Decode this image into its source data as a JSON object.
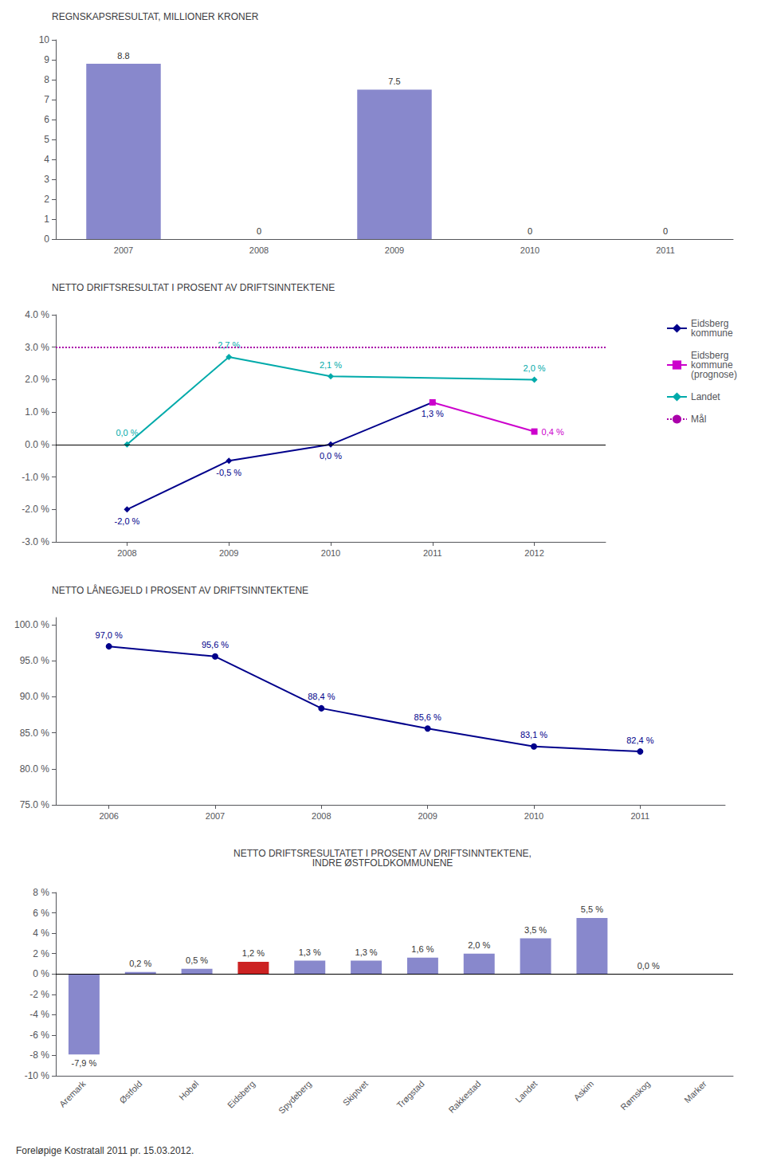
{
  "chart_data": [
    {
      "type": "bar",
      "title": "REGNSKAPSRESULTAT, MILLIONER KRONER",
      "categories": [
        "2007",
        "2008",
        "2009",
        "2010",
        "2011"
      ],
      "values": [
        8.8,
        0,
        7.5,
        0,
        0
      ],
      "color": "#8888cc",
      "ylim": [
        0,
        10
      ],
      "yticks": [
        0,
        1,
        2,
        3,
        4,
        5,
        6,
        7,
        8,
        9,
        10
      ],
      "data_labels": true,
      "grid": false
    },
    {
      "type": "line",
      "title": "NETTO DRIFTSRESULTAT I PROSENT AV DRIFTSINNTEKTENE",
      "x": [
        2008,
        2009,
        2010,
        2011,
        2012
      ],
      "xlim": [
        2007.3,
        2012.7
      ],
      "xticks": [
        2008,
        2009,
        2010,
        2011,
        2012
      ],
      "ylim": [
        -3.0,
        4.0
      ],
      "yticks": [
        {
          "value": -3.0,
          "label": "-3.0 %"
        },
        {
          "value": -2.0,
          "label": "-2.0 %"
        },
        {
          "value": -1.0,
          "label": "-1.0 %"
        },
        {
          "value": 0.0,
          "label": "0.0 %"
        },
        {
          "value": 1.0,
          "label": "1.0 %"
        },
        {
          "value": 2.0,
          "label": "2.0 %"
        },
        {
          "value": 3.0,
          "label": "3.0 %"
        },
        {
          "value": 4.0,
          "label": "4.0 %"
        }
      ],
      "grid": false,
      "legend": "right",
      "series": [
        {
          "name": "Eidsberg\nkommune",
          "color": "#00008B",
          "marker": "diamond",
          "values": [
            -2.0,
            -0.5,
            0.0,
            1.3,
            null
          ],
          "value_labels": [
            "-2,0 %",
            "-0,5 %",
            "0,0 %",
            "1,3 %",
            null
          ]
        },
        {
          "name": "Eidsberg\nkommune\n(prognose)",
          "color": "#cc00cc",
          "marker": "square",
          "values": [
            null,
            null,
            null,
            1.3,
            0.4
          ],
          "value_labels": [
            null,
            null,
            null,
            null,
            "0,4 %"
          ]
        },
        {
          "name": "Landet",
          "color": "#00aaaa",
          "marker": "diamond",
          "values": [
            0.0,
            2.7,
            2.1,
            null,
            2.0
          ],
          "value_labels": [
            "0,0 %",
            "2,7 %",
            "2,1 %",
            null,
            "2,0 %"
          ]
        },
        {
          "name": "Mål",
          "type": "hline",
          "color": "#aa00aa",
          "line_style": "dotted",
          "value": 3.0
        }
      ]
    },
    {
      "type": "line",
      "title": "NETTO LÅNEGJELD I PROSENT AV DRIFTSINNTEKTENE",
      "x": [
        2006,
        2007,
        2008,
        2009,
        2010,
        2011
      ],
      "xlim": [
        2005.5,
        2011.8
      ],
      "xticks": [
        2006,
        2007,
        2008,
        2009,
        2010,
        2011
      ],
      "values": [
        97.0,
        95.6,
        88.4,
        85.6,
        83.1,
        82.4
      ],
      "value_labels": [
        "97,0 %",
        "95,6 %",
        "88,4 %",
        "85,6 %",
        "83,1 %",
        "82,4 %"
      ],
      "color": "#00008B",
      "marker": "circle",
      "ylim": [
        75,
        101
      ],
      "yticks": [
        {
          "value": 75.0,
          "label": "75.0 %"
        },
        {
          "value": 80.0,
          "label": "80.0 %"
        },
        {
          "value": 85.0,
          "label": "85.0 %"
        },
        {
          "value": 90.0,
          "label": "90.0 %"
        },
        {
          "value": 95.0,
          "label": "95.0 %"
        },
        {
          "value": 100.0,
          "label": "100.0 %"
        }
      ],
      "grid": false
    },
    {
      "type": "bar",
      "title": "NETTO DRIFTSRESULTATET I PROSENT AV DRIFTSINNTEKTENE,\nINDRE ØSTFOLDKOMMUNENE",
      "categories": [
        "Aremark",
        "Østfold",
        "Hobøl",
        "Eidsberg",
        "Spydeberg",
        "Skiptvet",
        "Trøgstad",
        "Rakkestad",
        "Landet",
        "Askim",
        "Rømskog",
        "Marker"
      ],
      "values": [
        -7.9,
        0.2,
        0.5,
        1.2,
        1.3,
        1.3,
        1.6,
        2.0,
        3.5,
        5.5,
        0.0,
        0.0
      ],
      "value_labels": [
        "-7,9 %",
        "0,2 %",
        "0,5 %",
        "1,2 %",
        "1,3 %",
        "1,3 %",
        "1,6 %",
        "2,0 %",
        "3,5 %",
        "5,5 %",
        "0,0 %",
        null
      ],
      "colors": [
        "#8888cc",
        "#8888cc",
        "#8888cc",
        "#cc2222",
        "#8888cc",
        "#8888cc",
        "#8888cc",
        "#8888cc",
        "#8888cc",
        "#8888cc",
        "#8888cc",
        "#8888cc"
      ],
      "ylim": [
        -10,
        8
      ],
      "yticks": [
        {
          "value": -10,
          "label": "-10 %"
        },
        {
          "value": -8,
          "label": "-8 %"
        },
        {
          "value": -6,
          "label": "-6 %"
        },
        {
          "value": -4,
          "label": "-4 %"
        },
        {
          "value": -2,
          "label": "-2 %"
        },
        {
          "value": 0,
          "label": "0 %"
        },
        {
          "value": 2,
          "label": "2 %"
        },
        {
          "value": 4,
          "label": "4 %"
        },
        {
          "value": 6,
          "label": "6 %"
        },
        {
          "value": 8,
          "label": "8 %"
        }
      ],
      "annotations": [
        "Foreløpige Kostratall 2011 pr. 15.03.2012."
      ],
      "grid": false
    }
  ]
}
